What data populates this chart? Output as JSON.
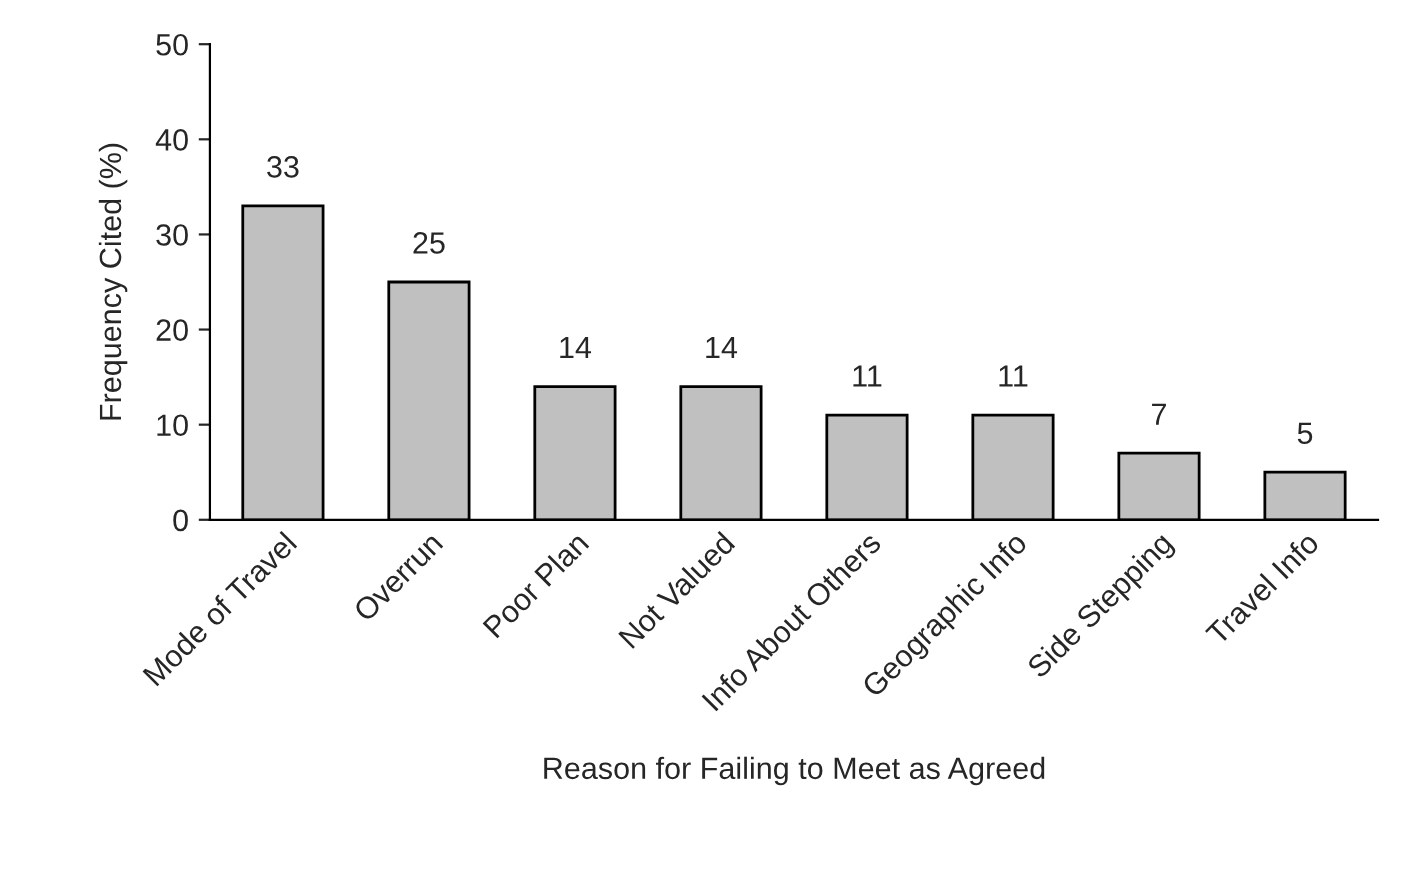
{
  "chart_data": {
    "type": "bar",
    "xlabel": "Reason for Failing to Meet as Agreed",
    "ylabel": "Frequency Cited (%)",
    "categories": [
      "Mode of Travel",
      "Overrun",
      "Poor Plan",
      "Not Valued",
      "Info About Others",
      "Geographic Info",
      "Side Stepping",
      "Travel Info"
    ],
    "values": [
      33,
      25,
      14,
      14,
      11,
      11,
      7,
      5
    ],
    "color": "#c0c0c0",
    "ylim": [
      0,
      50
    ],
    "yticks": [
      0,
      10,
      20,
      30,
      40,
      50
    ],
    "data_labels": true,
    "grid": false,
    "legend": false
  }
}
